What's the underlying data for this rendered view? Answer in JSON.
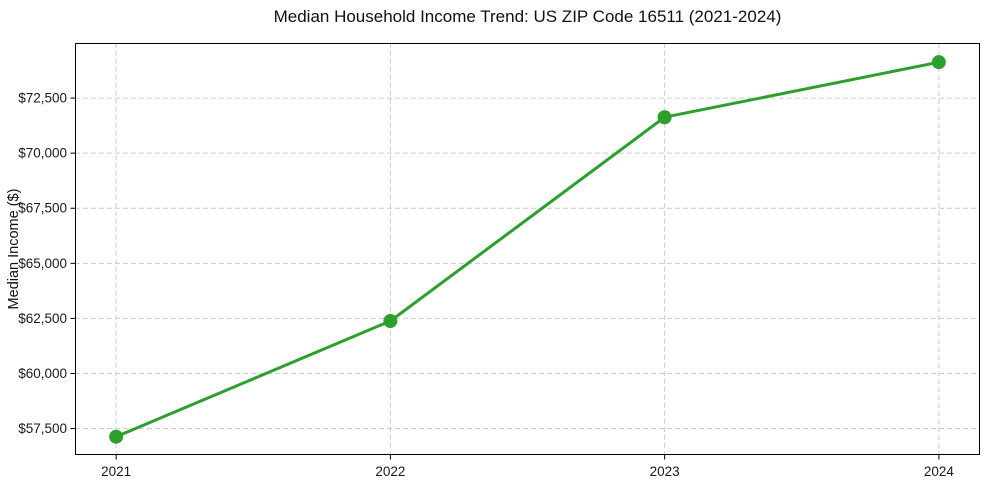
{
  "figure": {
    "background": "#ffffff"
  },
  "chart_data": {
    "type": "line",
    "title": "Median Household Income Trend: US ZIP Code 16511 (2021-2024)",
    "xlabel": "",
    "ylabel": "Median Income ($)",
    "categories": [
      "2021",
      "2022",
      "2023",
      "2024"
    ],
    "x": [
      2021,
      2022,
      2023,
      2024
    ],
    "series": [
      {
        "name": "Median Household Income",
        "values": [
          57130,
          62380,
          71630,
          74130
        ]
      }
    ],
    "xlim": [
      2020.85,
      2024.15
    ],
    "ylim": [
      56300,
      75000
    ],
    "yticks": [
      57500,
      60000,
      62500,
      65000,
      67500,
      70000,
      72500
    ],
    "ytick_labels": [
      "$57,500",
      "$60,000",
      "$62,500",
      "$65,000",
      "$67,500",
      "$70,000",
      "$72,500"
    ],
    "xtick_labels": [
      "2021",
      "2022",
      "2023",
      "2024"
    ],
    "grid": true,
    "grid_style": "dashed",
    "legend": null,
    "colors": {
      "line": "#2ca02c",
      "marker": "#2ca02c",
      "grid": "#cccccc",
      "axis": "#000000",
      "tick_text": "#1a1a1a"
    }
  }
}
